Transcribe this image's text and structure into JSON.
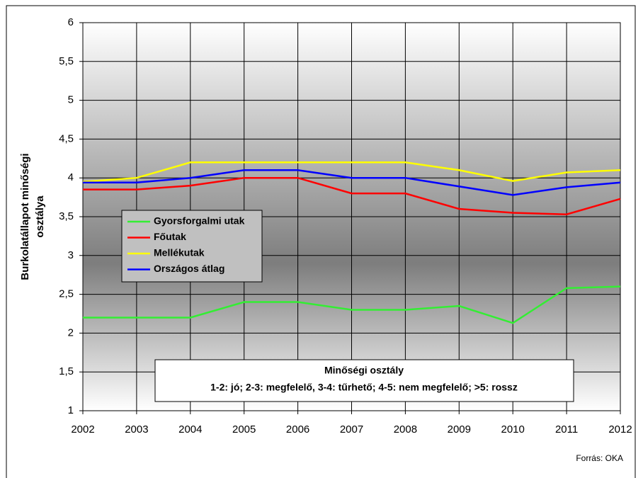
{
  "chart_data": {
    "type": "line",
    "y_label": [
      "Burkolatállapot minőségi",
      "osztálya"
    ],
    "x": [
      2002,
      2003,
      2004,
      2005,
      2006,
      2007,
      2008,
      2009,
      2010,
      2011,
      2012
    ],
    "xlim": [
      2002,
      2012
    ],
    "xticks": [
      2002,
      2003,
      2004,
      2005,
      2006,
      2007,
      2008,
      2009,
      2010,
      2011,
      2012
    ],
    "ylim": [
      1,
      6
    ],
    "yticks": [
      1,
      {
        "value": 1.5,
        "label": "1,5"
      },
      2,
      {
        "value": 2.5,
        "label": "2,5"
      },
      3,
      {
        "value": 3.5,
        "label": "3,5"
      },
      4,
      {
        "value": 4.5,
        "label": "4,5"
      },
      5,
      {
        "value": 5.5,
        "label": "5,5"
      },
      6
    ],
    "grid": true,
    "legend": "left",
    "series": [
      {
        "name": "Gyorsforgalmi utak",
        "color": "#33ee33",
        "values": [
          2.2,
          2.2,
          2.2,
          2.4,
          2.4,
          2.3,
          2.3,
          2.35,
          2.13,
          2.58,
          2.6
        ]
      },
      {
        "name": "Főutak",
        "color": "#ff0000",
        "values": [
          3.85,
          3.85,
          3.9,
          4.0,
          4.0,
          3.8,
          3.8,
          3.6,
          3.55,
          3.53,
          3.73
        ]
      },
      {
        "name": "Mellékutak",
        "color": "#ffff00",
        "values": [
          3.95,
          4.0,
          4.2,
          4.2,
          4.2,
          4.2,
          4.2,
          4.1,
          3.96,
          4.07,
          4.1
        ]
      },
      {
        "name": "Országos átlag",
        "color": "#0000ff",
        "values": [
          3.94,
          3.94,
          4.0,
          4.1,
          4.1,
          4.0,
          4.0,
          3.89,
          3.78,
          3.88,
          3.94
        ]
      }
    ],
    "annotation": {
      "title": "Minőségi osztály",
      "text": "1-2: jó; 2-3: megfelelő, 3-4: tűrhető; 4-5: nem megfelelő; >5: rossz"
    },
    "source": "Forrás: OKA"
  }
}
